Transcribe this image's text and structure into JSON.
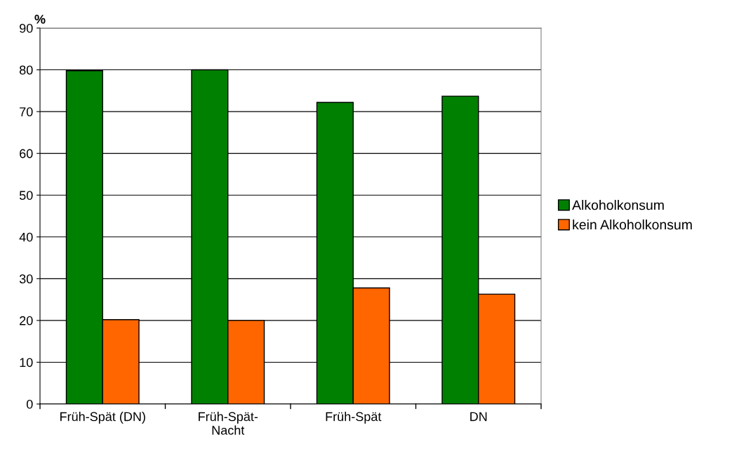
{
  "chart_data": {
    "type": "bar",
    "ylabel": "%",
    "categories": [
      "Früh-Spät (DN)",
      "Früh-Spät-\nNacht",
      "Früh-Spät",
      "DN"
    ],
    "series": [
      {
        "name": "Alkoholkonsum",
        "color": "#008000",
        "values": [
          79.8,
          80.0,
          72.2,
          73.7
        ]
      },
      {
        "name": "kein Alkoholkonsum",
        "color": "#ff6600",
        "values": [
          20.2,
          20.0,
          27.8,
          26.3
        ]
      }
    ],
    "ylim": [
      0,
      90
    ],
    "yticks": [
      0,
      10,
      20,
      30,
      40,
      50,
      60,
      70,
      80,
      90
    ],
    "grid": "y",
    "legend": "right"
  }
}
